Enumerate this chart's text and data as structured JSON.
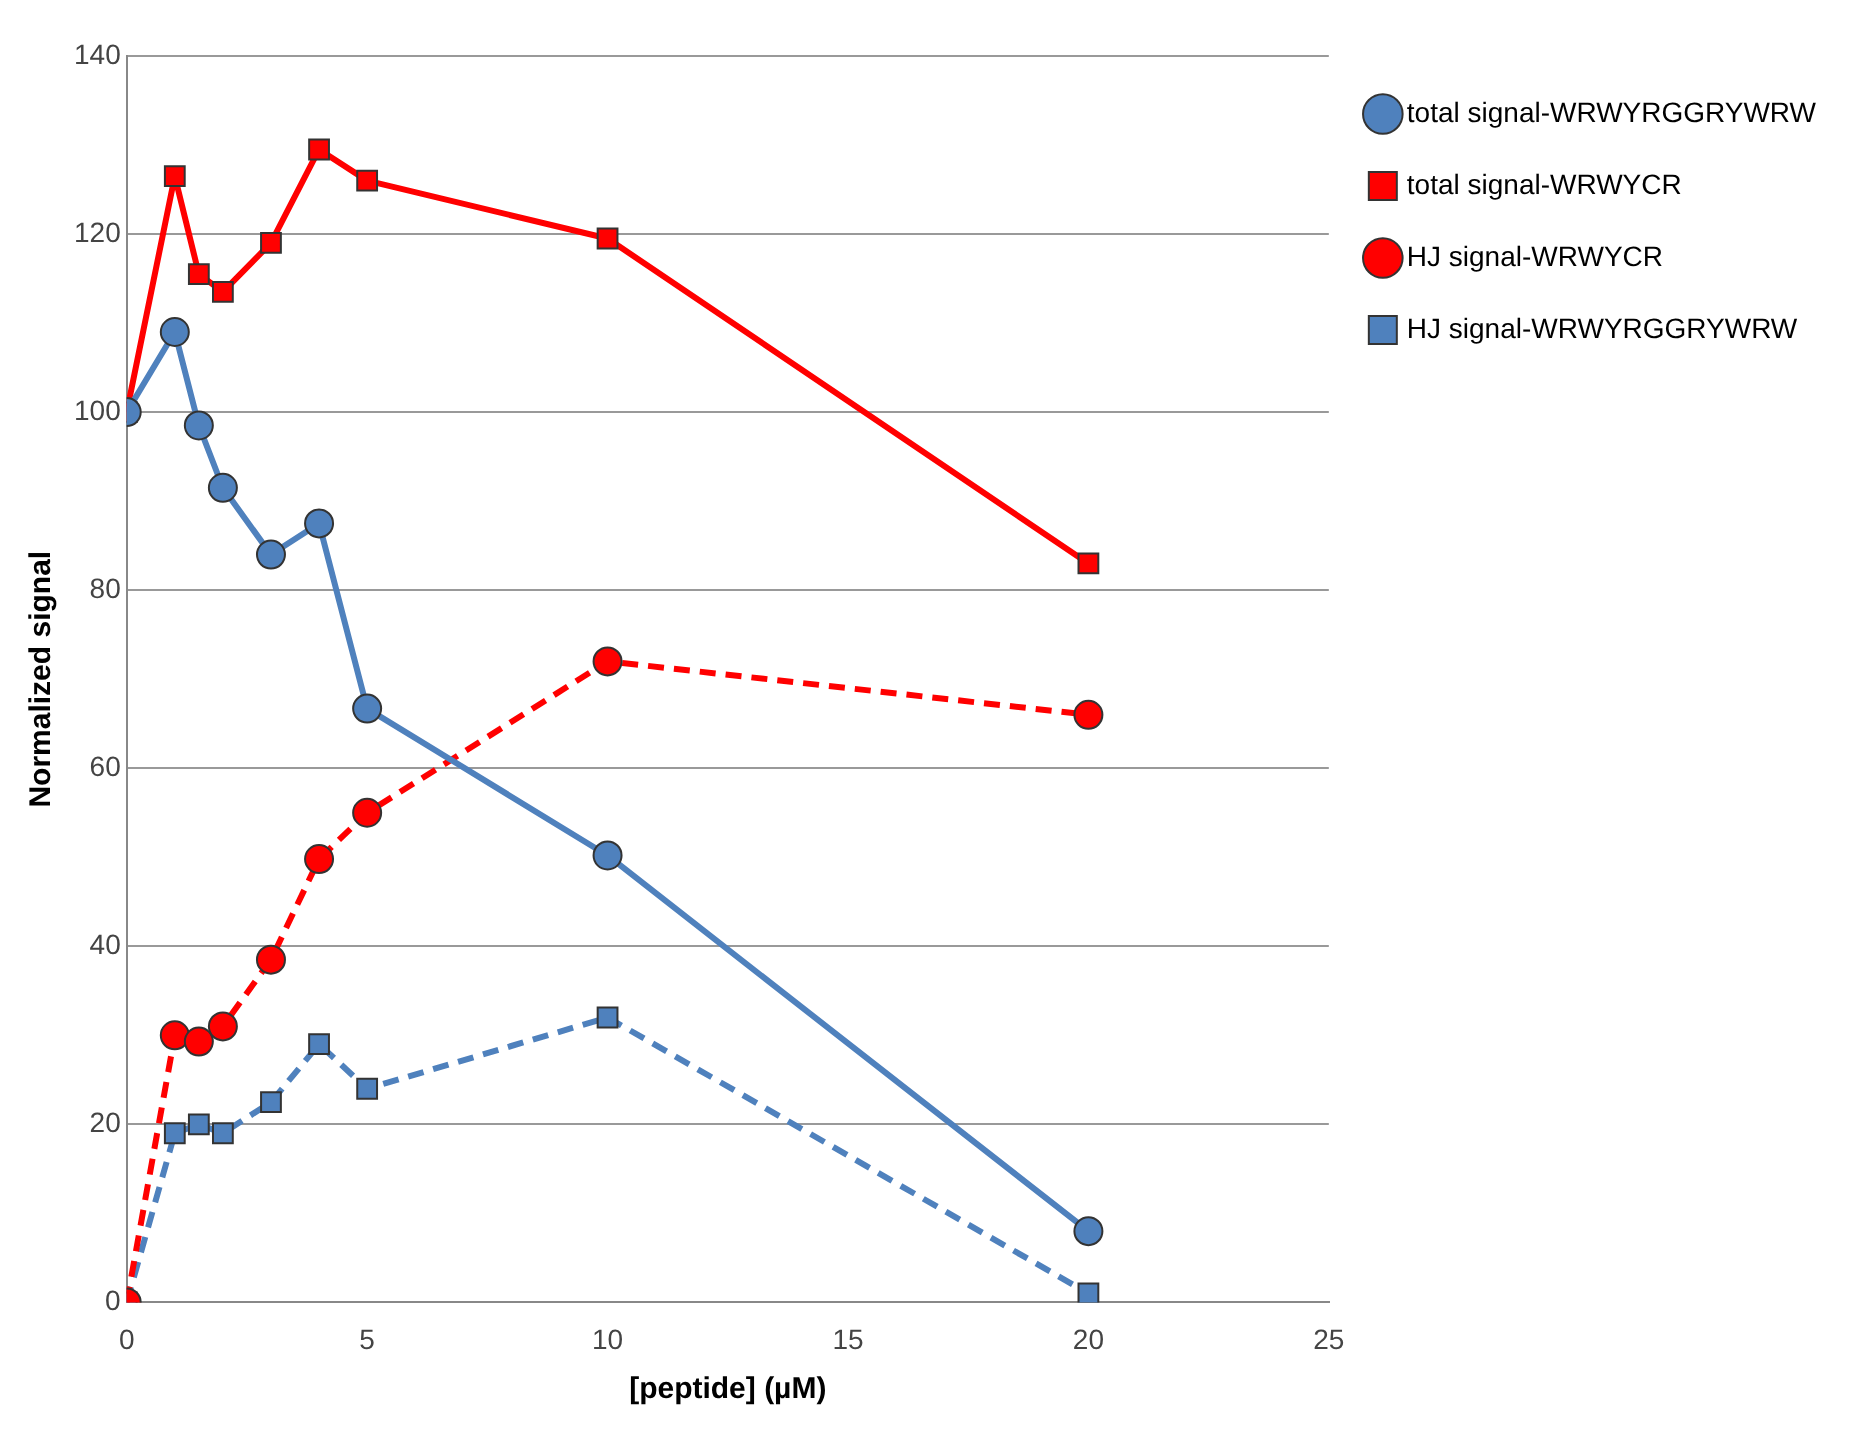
{
  "chart_data": {
    "type": "line",
    "xlabel": "[peptide] (µM)",
    "ylabel": "Normalized signal",
    "x": [
      0,
      1,
      1.5,
      2,
      3,
      4,
      5,
      10,
      20
    ],
    "series": [
      {
        "name": "total signal-WRWYRGGRYWRW",
        "color": "#4f81bd",
        "marker": "circle",
        "line_style": "solid",
        "values": [
          100,
          109,
          98.5,
          91.5,
          84,
          87.5,
          66.7,
          50.2,
          8
        ]
      },
      {
        "name": "total signal-WRWYCR",
        "color": "#ff0000",
        "marker": "square",
        "line_style": "solid",
        "values": [
          100,
          126.5,
          115.5,
          113.5,
          119,
          129.5,
          126,
          119.5,
          83
        ]
      },
      {
        "name": "HJ signal-WRWYCR",
        "color": "#ff0000",
        "marker": "circle",
        "line_style": "dashed",
        "values": [
          0,
          30,
          29.3,
          31,
          38.5,
          49.8,
          55,
          72,
          66
        ]
      },
      {
        "name": "HJ signal-WRWYRGGRYWRW",
        "color": "#4f81bd",
        "marker": "square",
        "line_style": "dashed",
        "values": [
          0,
          19,
          20,
          19,
          22.5,
          29,
          24,
          32,
          1
        ]
      }
    ],
    "xlim": [
      0,
      25
    ],
    "xticks": [
      0,
      5,
      10,
      15,
      20,
      25
    ],
    "ylim": [
      0,
      140
    ],
    "yticks": [
      0,
      20,
      40,
      60,
      80,
      100,
      120,
      140
    ],
    "grid": "y",
    "legend": "top right"
  }
}
